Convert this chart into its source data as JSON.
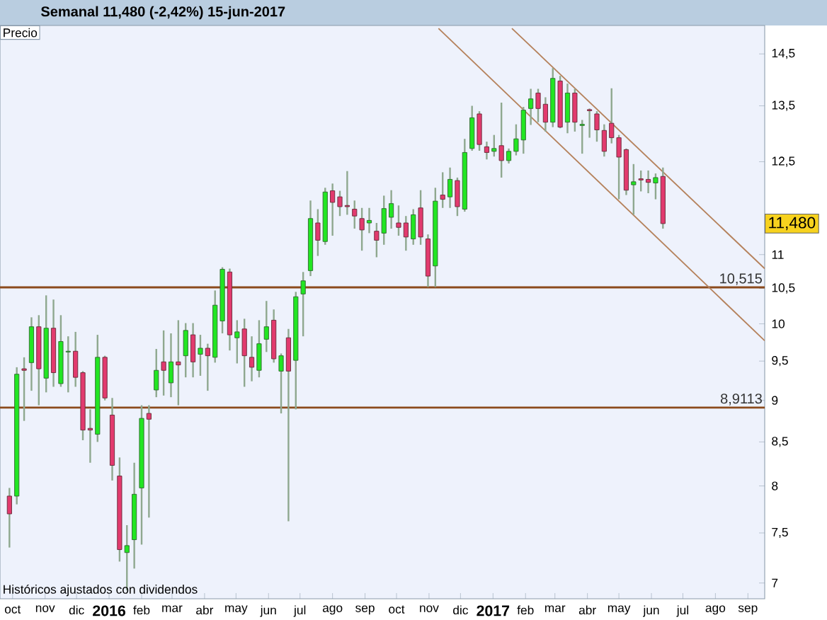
{
  "chart_data": {
    "type": "candlestick",
    "title": "Semanal   11,480 (-2,42%)   15-jun-2017",
    "log": "y",
    "x": [
      "2015-09-28",
      "2015-10-05",
      "2015-10-12",
      "2015-10-19",
      "2015-10-26",
      "2015-11-02",
      "2015-11-09",
      "2015-11-16",
      "2015-11-23",
      "2015-11-30",
      "2015-12-07",
      "2015-12-14",
      "2015-12-21",
      "2015-12-28",
      "2016-01-04",
      "2016-01-11",
      "2016-01-18",
      "2016-01-25",
      "2016-02-01",
      "2016-02-08",
      "2016-02-15",
      "2016-02-22",
      "2016-02-29",
      "2016-03-07",
      "2016-03-14",
      "2016-03-21",
      "2016-03-28",
      "2016-04-04",
      "2016-04-11",
      "2016-04-18",
      "2016-04-25",
      "2016-05-02",
      "2016-05-09",
      "2016-05-16",
      "2016-05-23",
      "2016-05-30",
      "2016-06-06",
      "2016-06-13",
      "2016-06-20",
      "2016-06-27",
      "2016-07-04",
      "2016-07-11",
      "2016-07-18",
      "2016-07-25",
      "2016-08-01",
      "2016-08-08",
      "2016-08-15",
      "2016-08-22",
      "2016-08-29",
      "2016-09-05",
      "2016-09-12",
      "2016-09-19",
      "2016-09-26",
      "2016-10-03",
      "2016-10-10",
      "2016-10-17",
      "2016-10-24",
      "2016-10-31",
      "2016-11-07",
      "2016-11-14",
      "2016-11-21",
      "2016-11-28",
      "2016-12-05",
      "2016-12-12",
      "2016-12-19",
      "2016-12-26",
      "2017-01-02",
      "2017-01-09",
      "2017-01-16",
      "2017-01-23",
      "2017-01-30",
      "2017-02-06",
      "2017-02-13",
      "2017-02-20",
      "2017-02-27",
      "2017-03-06",
      "2017-03-13",
      "2017-03-20",
      "2017-03-27",
      "2017-04-03",
      "2017-04-10",
      "2017-04-17",
      "2017-04-24",
      "2017-05-01",
      "2017-05-08",
      "2017-05-15",
      "2017-05-22",
      "2017-05-29",
      "2017-06-05",
      "2017-06-12"
    ],
    "ohlc": [
      [
        7.89,
        7.98,
        7.35,
        7.7
      ],
      [
        7.89,
        9.42,
        7.8,
        9.33
      ],
      [
        9.4,
        9.55,
        8.75,
        9.38
      ],
      [
        9.48,
        10.09,
        9.12,
        9.96
      ],
      [
        9.96,
        10.12,
        8.94,
        9.4
      ],
      [
        9.28,
        10.4,
        9.1,
        9.94
      ],
      [
        9.94,
        10.34,
        9.17,
        9.35
      ],
      [
        9.21,
        10.12,
        9.17,
        9.76
      ],
      [
        9.62,
        9.83,
        9.1,
        9.63
      ],
      [
        9.63,
        9.89,
        9.17,
        9.29
      ],
      [
        9.35,
        9.37,
        8.52,
        8.64
      ],
      [
        8.66,
        8.89,
        8.26,
        8.64
      ],
      [
        8.59,
        9.85,
        8.5,
        9.55
      ],
      [
        9.55,
        9.57,
        9.0,
        9.03
      ],
      [
        8.82,
        9.03,
        8.06,
        8.23
      ],
      [
        8.11,
        8.32,
        7.21,
        7.33
      ],
      [
        7.3,
        7.58,
        6.93,
        7.37
      ],
      [
        7.43,
        8.26,
        7.14,
        7.91
      ],
      [
        7.98,
        8.94,
        7.38,
        8.78
      ],
      [
        8.84,
        8.94,
        7.66,
        8.77
      ],
      [
        9.13,
        9.66,
        9.04,
        9.38
      ],
      [
        9.49,
        9.91,
        9.06,
        9.38
      ],
      [
        9.22,
        9.87,
        9.04,
        9.49
      ],
      [
        9.49,
        10.05,
        8.94,
        9.45
      ],
      [
        9.57,
        10.01,
        9.29,
        9.91
      ],
      [
        9.85,
        10.01,
        9.29,
        9.49
      ],
      [
        9.59,
        9.85,
        9.31,
        9.67
      ],
      [
        9.67,
        9.73,
        9.12,
        9.57
      ],
      [
        9.55,
        10.47,
        9.48,
        10.26
      ],
      [
        10.04,
        10.81,
        9.87,
        10.78
      ],
      [
        10.74,
        10.79,
        9.64,
        9.85
      ],
      [
        9.81,
        10.05,
        9.47,
        9.89
      ],
      [
        9.93,
        10.07,
        9.17,
        9.57
      ],
      [
        9.55,
        9.83,
        9.24,
        9.42
      ],
      [
        9.38,
        10.05,
        9.29,
        9.73
      ],
      [
        9.79,
        10.32,
        9.62,
        9.96
      ],
      [
        10.05,
        10.2,
        9.48,
        9.53
      ],
      [
        9.37,
        9.6,
        8.84,
        9.57
      ],
      [
        9.81,
        9.93,
        7.62,
        9.37
      ],
      [
        9.51,
        10.45,
        8.89,
        10.38
      ],
      [
        10.42,
        10.74,
        9.83,
        10.61
      ],
      [
        10.76,
        11.85,
        10.68,
        11.56
      ],
      [
        11.49,
        11.71,
        10.98,
        11.22
      ],
      [
        11.2,
        12.06,
        11.15,
        11.99
      ],
      [
        12.01,
        12.13,
        11.29,
        11.82
      ],
      [
        11.91,
        12.01,
        11.6,
        11.75
      ],
      [
        11.77,
        12.34,
        11.62,
        11.75
      ],
      [
        11.71,
        11.85,
        11.4,
        11.6
      ],
      [
        11.56,
        11.73,
        11.06,
        11.38
      ],
      [
        11.49,
        11.73,
        11.33,
        11.53
      ],
      [
        11.36,
        11.49,
        10.96,
        11.22
      ],
      [
        11.33,
        11.93,
        11.15,
        11.72
      ],
      [
        11.58,
        12.02,
        11.4,
        11.8
      ],
      [
        11.49,
        11.77,
        11.29,
        11.42
      ],
      [
        11.49,
        11.6,
        11.06,
        11.27
      ],
      [
        11.24,
        11.71,
        11.15,
        11.62
      ],
      [
        11.73,
        12.02,
        11.15,
        11.27
      ],
      [
        11.24,
        11.31,
        10.52,
        10.68
      ],
      [
        10.83,
        12.06,
        10.52,
        11.84
      ],
      [
        11.94,
        12.32,
        11.73,
        11.87
      ],
      [
        11.91,
        12.4,
        11.73,
        12.2
      ],
      [
        12.18,
        12.23,
        11.6,
        11.75
      ],
      [
        11.71,
        12.9,
        11.67,
        12.66
      ],
      [
        12.73,
        13.5,
        12.69,
        13.28
      ],
      [
        13.35,
        13.4,
        12.69,
        12.8
      ],
      [
        12.76,
        12.85,
        12.54,
        12.66
      ],
      [
        12.68,
        12.97,
        12.59,
        12.73
      ],
      [
        12.78,
        13.56,
        12.23,
        12.52
      ],
      [
        12.52,
        12.73,
        12.47,
        12.68
      ],
      [
        12.68,
        13.16,
        12.61,
        12.9
      ],
      [
        12.88,
        13.48,
        12.64,
        13.42
      ],
      [
        13.45,
        13.82,
        13.15,
        13.63
      ],
      [
        13.74,
        13.82,
        13.2,
        13.45
      ],
      [
        13.53,
        13.66,
        13.03,
        13.2
      ],
      [
        13.2,
        14.22,
        13.11,
        14.02
      ],
      [
        13.97,
        14.07,
        13.09,
        13.11
      ],
      [
        13.2,
        13.92,
        13.0,
        13.74
      ],
      [
        13.74,
        13.82,
        13.03,
        13.2
      ],
      [
        13.14,
        13.24,
        12.64,
        13.16
      ],
      [
        13.43,
        13.45,
        12.92,
        13.41
      ],
      [
        13.35,
        13.4,
        12.85,
        13.06
      ],
      [
        13.05,
        13.16,
        12.59,
        12.68
      ],
      [
        13.18,
        13.83,
        12.82,
        12.92
      ],
      [
        12.92,
        12.97,
        11.87,
        12.58
      ],
      [
        12.71,
        12.73,
        11.94,
        12.02
      ],
      [
        12.11,
        12.46,
        11.62,
        12.16
      ],
      [
        12.21,
        12.35,
        12.0,
        12.19
      ],
      [
        12.2,
        12.35,
        11.97,
        12.15
      ],
      [
        12.14,
        12.3,
        11.87,
        12.23
      ],
      [
        12.25,
        12.4,
        11.4,
        11.48
      ]
    ],
    "series": [
      {
        "type": "line",
        "x": [
          "2017-01-19",
          "2017-09-17"
        ],
        "values": [
          15.02,
          10.79
        ],
        "color": "#b5825c"
      },
      {
        "type": "line",
        "x": [
          "2016-11-10",
          "2017-09-17"
        ],
        "values": [
          15.02,
          9.77
        ],
        "color": "#b5825c"
      }
    ],
    "xlim": [
      "2015-09-19",
      "2017-09-17"
    ],
    "ylim": [
      6.85,
      15.08
    ],
    "xticks": [
      {
        "value": "2015-10-01",
        "label": "oct"
      },
      {
        "value": "2015-11-01",
        "label": "nov"
      },
      {
        "value": "2015-12-01",
        "label": "dic"
      },
      {
        "value": "2016-01-01",
        "label": "2016"
      },
      {
        "value": "2016-02-01",
        "label": "feb"
      },
      {
        "value": "2016-03-01",
        "label": "mar"
      },
      {
        "value": "2016-04-01",
        "label": "abr"
      },
      {
        "value": "2016-05-01",
        "label": "may"
      },
      {
        "value": "2016-06-01",
        "label": "jun"
      },
      {
        "value": "2016-07-01",
        "label": "jul"
      },
      {
        "value": "2016-08-01",
        "label": "ago"
      },
      {
        "value": "2016-09-01",
        "label": "sep"
      },
      {
        "value": "2016-10-01",
        "label": "oct"
      },
      {
        "value": "2016-11-01",
        "label": "nov"
      },
      {
        "value": "2016-12-01",
        "label": "dic"
      },
      {
        "value": "2017-01-01",
        "label": "2017"
      },
      {
        "value": "2017-02-01",
        "label": "feb"
      },
      {
        "value": "2017-03-01",
        "label": "mar"
      },
      {
        "value": "2017-04-01",
        "label": "abr"
      },
      {
        "value": "2017-05-01",
        "label": "may"
      },
      {
        "value": "2017-06-01",
        "label": "jun"
      },
      {
        "value": "2017-07-01",
        "label": "jul"
      },
      {
        "value": "2017-08-01",
        "label": "ago"
      },
      {
        "value": "2017-09-01",
        "label": "sep"
      }
    ],
    "yticks": [
      7,
      {
        "value": 7.5,
        "label": "7,5"
      },
      8,
      {
        "value": 8.5,
        "label": "8,5"
      },
      9,
      {
        "value": 9.5,
        "label": "9,5"
      },
      10,
      {
        "value": 10.5,
        "label": "10,5"
      },
      11,
      {
        "value": 12.5,
        "label": "12,5"
      },
      {
        "value": 13.5,
        "label": "13,5"
      },
      {
        "value": 14.5,
        "label": "14,5"
      }
    ],
    "ref_lines": [
      {
        "axis": "y",
        "value": 10.515,
        "label": "10,515",
        "color": "#8b4a1c"
      },
      {
        "axis": "y",
        "value": 8.9113,
        "label": "8,9113",
        "color": "#8b4a1c"
      }
    ],
    "annotations": [
      "Precio",
      "Históricos ajustados con dividendos",
      {
        "text": "11,480",
        "y": 11.48
      }
    ]
  }
}
